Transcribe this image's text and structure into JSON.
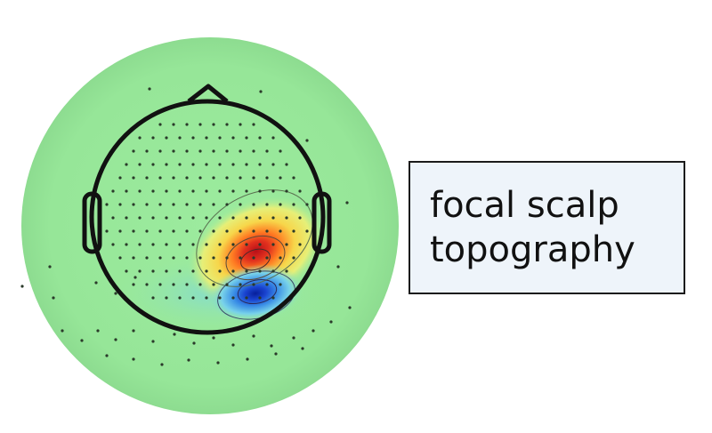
{
  "label": {
    "line1": "focal scalp",
    "line2": "topography"
  },
  "colors": {
    "background_field": "#97e89a",
    "field_edge": "#8ee090",
    "positive_peak": "#c8141e",
    "positive_mid": "#ff7a22",
    "positive_low": "#f5e35a",
    "negative_peak": "#0a2bb0",
    "negative_mid": "#2d7be0",
    "negative_low": "#70d0e8",
    "head_outline": "#111111",
    "electrode": "#2a3a2a",
    "box_fill": "#eef4fa",
    "box_border": "#1b1b1b"
  },
  "icons": {
    "head": "head-outline-icon",
    "nose": "nose-icon",
    "ears": "ear-icon",
    "electrodes": "electrode-dot-icon"
  }
}
